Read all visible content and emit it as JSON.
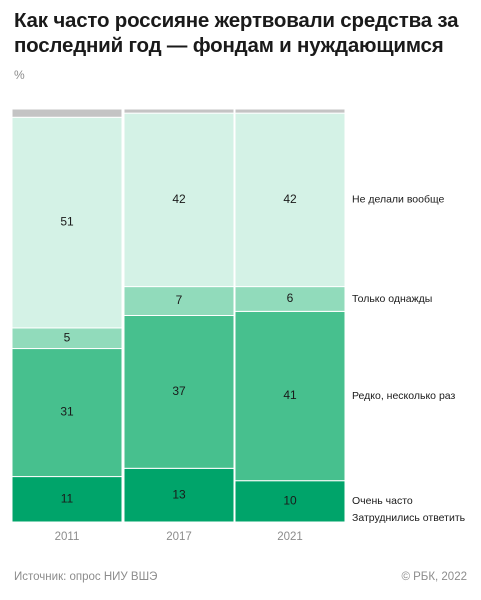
{
  "title": "Как часто россияне жертвовали средства за последний год — фондам и нуждающимся",
  "unit": "%",
  "source": "Источник: опрос НИУ ВШЭ",
  "copyright": "© РБК, 2022",
  "chart_data": {
    "type": "bar",
    "stacked": true,
    "categories": [
      "2011",
      "2017",
      "2021"
    ],
    "series": [
      {
        "name": "Очень часто",
        "values": [
          11,
          13,
          10
        ],
        "color": "#00a46a"
      },
      {
        "name": "Редко, несколько раз",
        "values": [
          31,
          37,
          41
        ],
        "color": "#47c08e"
      },
      {
        "name": "Только однажды",
        "values": [
          5,
          7,
          6
        ],
        "color": "#91dbbb"
      },
      {
        "name": "Не делали вообще",
        "values": [
          51,
          42,
          42
        ],
        "color": "#d4f2e6"
      },
      {
        "name": "Затруднились ответить",
        "values": [
          2,
          1,
          1
        ],
        "color": "#c4c4c4",
        "show_values": false
      }
    ],
    "ylabel": "%",
    "grid": false,
    "legend_position": "right"
  }
}
